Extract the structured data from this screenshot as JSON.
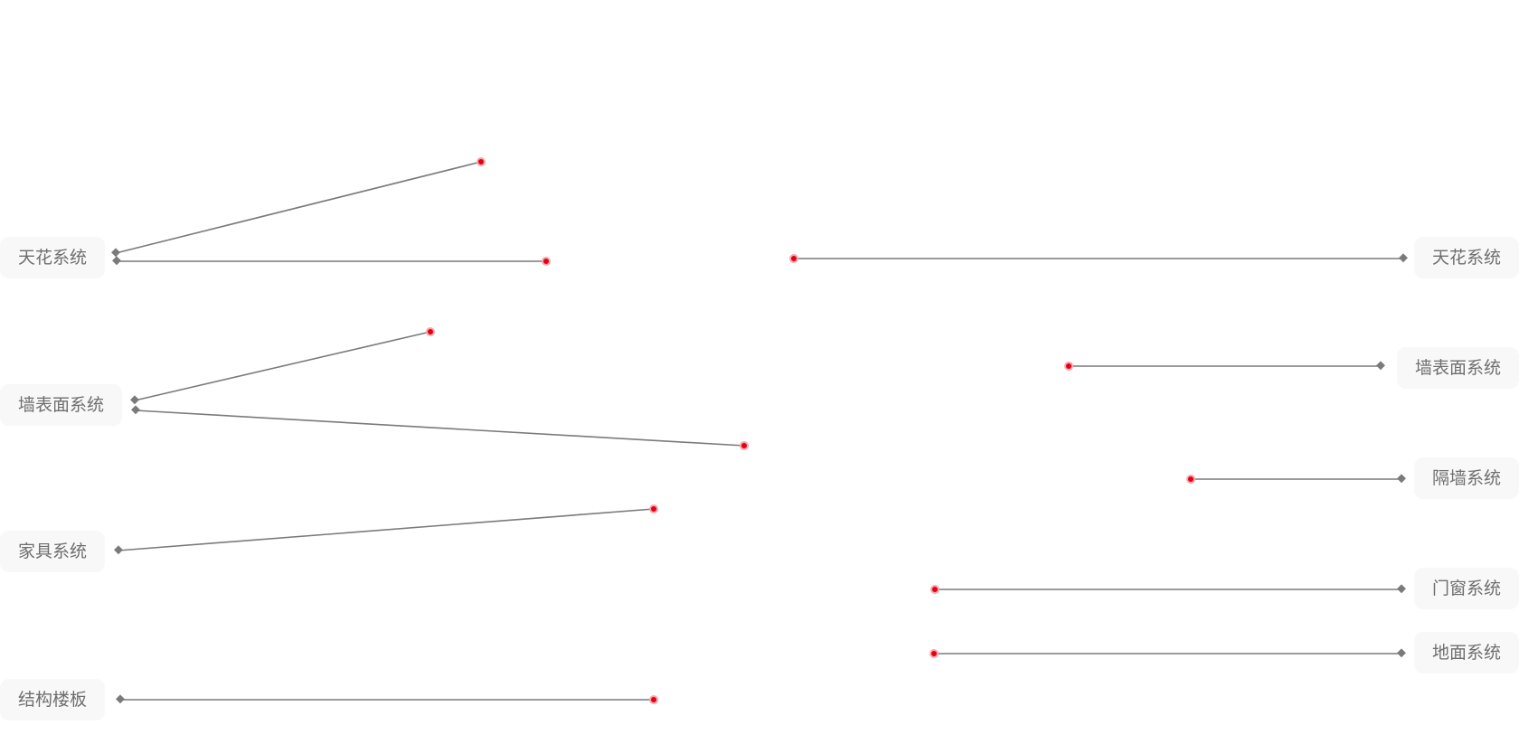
{
  "left_labels": [
    "天花系统",
    "墙表面系统",
    "家具系统",
    "结构楼板"
  ],
  "right_labels": [
    "天花系统",
    "墙表面系统",
    "隔墙系统",
    "门窗系统",
    "地面系统"
  ],
  "colors": {
    "line": "#7a7a7a",
    "hotspot": "#e60012",
    "label_background": "#f8f8f8",
    "label_text": "#6e6e6e"
  }
}
